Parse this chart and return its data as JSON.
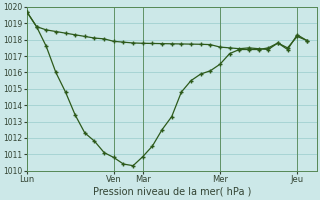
{
  "xlabel": "Pression niveau de la mer( hPa )",
  "ylim": [
    1010,
    1020
  ],
  "yticks": [
    1010,
    1011,
    1012,
    1013,
    1014,
    1015,
    1016,
    1017,
    1018,
    1019,
    1020
  ],
  "xtick_labels": [
    "Lun",
    "Ven",
    "Mar",
    "Mer",
    "Jeu"
  ],
  "xtick_positions": [
    0,
    9,
    12,
    20,
    28
  ],
  "xlim": [
    0,
    30
  ],
  "bg_color": "#cce8e8",
  "grid_color": "#99cccc",
  "line_color": "#2d5a1b",
  "line1_x": [
    0,
    1,
    2,
    3,
    4,
    5,
    6,
    7,
    8,
    9,
    10,
    11,
    12,
    13,
    14,
    15,
    16,
    17,
    18,
    19,
    20,
    21,
    22,
    23,
    24,
    25,
    26,
    27,
    28,
    29
  ],
  "line1_y": [
    1019.7,
    1018.8,
    1018.6,
    1018.5,
    1018.4,
    1018.3,
    1018.2,
    1018.1,
    1018.05,
    1017.9,
    1017.85,
    1017.8,
    1017.78,
    1017.77,
    1017.76,
    1017.75,
    1017.74,
    1017.73,
    1017.72,
    1017.7,
    1017.55,
    1017.5,
    1017.45,
    1017.5,
    1017.45,
    1017.4,
    1017.8,
    1017.5,
    1018.2,
    1017.95
  ],
  "line2_x": [
    0,
    1,
    2,
    3,
    4,
    5,
    6,
    7,
    8,
    9,
    10,
    11,
    12,
    13,
    14,
    15,
    16,
    17,
    18,
    19,
    20,
    21,
    22,
    23,
    24,
    25,
    26,
    27,
    28,
    29
  ],
  "line2_y": [
    1019.7,
    1018.8,
    1017.6,
    1016.0,
    1014.8,
    1013.4,
    1012.3,
    1011.8,
    1011.1,
    1010.8,
    1010.4,
    1010.3,
    1010.85,
    1011.5,
    1012.5,
    1013.3,
    1014.8,
    1015.5,
    1015.9,
    1016.1,
    1016.5,
    1017.15,
    1017.4,
    1017.4,
    1017.4,
    1017.5,
    1017.8,
    1017.4,
    1018.3,
    1017.95
  ]
}
